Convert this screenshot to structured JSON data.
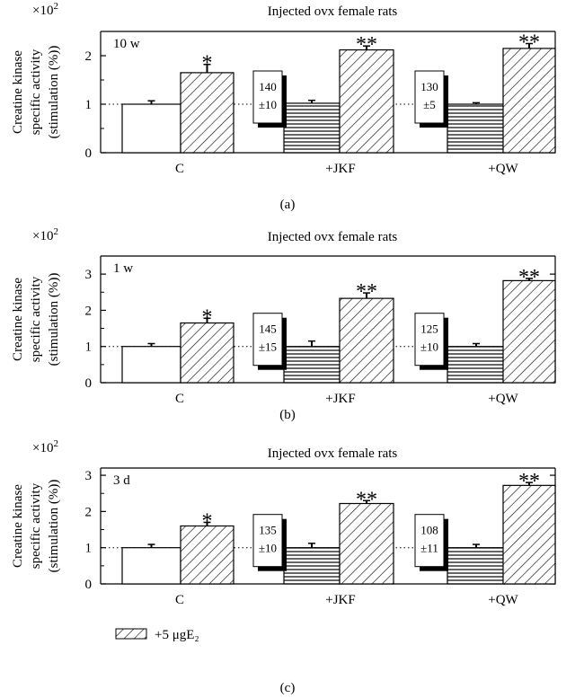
{
  "legend": {
    "label": "+5 μgE₂",
    "pattern": "hatched"
  },
  "panels": [
    {
      "caption": "(a)",
      "title": "Injected ovx female rats",
      "scale": "×10",
      "scale_exp": "2",
      "duration": "10 w",
      "ylabel_lines": [
        "Creatine kinase",
        "specific activity",
        "(stimulation (%))"
      ],
      "baseline_y": 1,
      "groups": [
        {
          "label": "C",
          "inset": null
        },
        {
          "label": "+JKF",
          "inset": {
            "value": "140",
            "err": "±10"
          }
        },
        {
          "label": "+QW",
          "inset": {
            "value": "130",
            "err": "±5"
          }
        }
      ]
    },
    {
      "caption": "(b)",
      "title": "Injected ovx female rats",
      "scale": "×10",
      "scale_exp": "2",
      "duration": "1 w",
      "ylabel_lines": [
        "Creatine kinase",
        "specific activity",
        "(stimulation (%))"
      ],
      "baseline_y": 1,
      "groups": [
        {
          "label": "C",
          "inset": null
        },
        {
          "label": "+JKF",
          "inset": {
            "value": "145",
            "err": "±15"
          }
        },
        {
          "label": "+QW",
          "inset": {
            "value": "125",
            "err": "±10"
          }
        }
      ]
    },
    {
      "caption": "(c)",
      "title": "Injected ovx female rats",
      "scale": "×10",
      "scale_exp": "2",
      "duration": "3 d",
      "ylabel_lines": [
        "Creatine kinase",
        "specific activity",
        "(stimulation (%))"
      ],
      "baseline_y": 1,
      "groups": [
        {
          "label": "C",
          "inset": null
        },
        {
          "label": "+JKF",
          "inset": {
            "value": "135",
            "err": "±10"
          }
        },
        {
          "label": "+QW",
          "inset": {
            "value": "108",
            "err": "±11"
          }
        }
      ]
    }
  ],
  "chart_data": [
    {
      "type": "bar",
      "categories": [
        "C",
        "+JKF",
        "+QW"
      ],
      "series": [
        {
          "values": [
            1.0,
            1.02,
            1.0
          ],
          "errors": [
            0.07,
            0.06,
            0.03
          ],
          "pattern": [
            "open",
            "horizontal-lines",
            "horizontal-lines"
          ]
        },
        {
          "name": "+5 μgE₂",
          "values": [
            1.65,
            2.12,
            2.15
          ],
          "errors": [
            0.17,
            0.08,
            0.1
          ],
          "pattern": "hatched",
          "significance": [
            "*",
            "**",
            "**"
          ]
        }
      ],
      "ylim": [
        0,
        2.5
      ],
      "yticks": [
        0,
        1,
        2
      ],
      "ytick_labels": [
        "0",
        "1",
        "2"
      ],
      "reference_line": 1,
      "grid": false
    },
    {
      "type": "bar",
      "categories": [
        "C",
        "+JKF",
        "+QW"
      ],
      "series": [
        {
          "values": [
            1.0,
            1.0,
            1.0
          ],
          "errors": [
            0.08,
            0.15,
            0.08
          ],
          "pattern": [
            "open",
            "horizontal-lines",
            "horizontal-lines"
          ]
        },
        {
          "name": "+5 μgE₂",
          "values": [
            1.65,
            2.33,
            2.82
          ],
          "errors": [
            0.13,
            0.15,
            0.06
          ],
          "pattern": "hatched",
          "significance": [
            "*",
            "**",
            "**"
          ]
        }
      ],
      "ylim": [
        0,
        3.5
      ],
      "yticks": [
        0,
        1,
        2,
        3
      ],
      "ytick_labels": [
        "0",
        "1",
        "2",
        "3"
      ],
      "reference_line": 1,
      "grid": false
    },
    {
      "type": "bar",
      "categories": [
        "C",
        "+JKF",
        "+QW"
      ],
      "series": [
        {
          "values": [
            1.0,
            1.0,
            1.0
          ],
          "errors": [
            0.09,
            0.12,
            0.09
          ],
          "pattern": [
            "open",
            "horizontal-lines",
            "horizontal-lines"
          ]
        },
        {
          "name": "+5 μgE₂",
          "values": [
            1.6,
            2.22,
            2.72
          ],
          "errors": [
            0.1,
            0.08,
            0.08
          ],
          "pattern": "hatched",
          "significance": [
            "*",
            "**",
            "**"
          ]
        }
      ],
      "ylim": [
        0,
        3.2
      ],
      "yticks": [
        0,
        1,
        2,
        3
      ],
      "ytick_labels": [
        "0",
        "1",
        "2",
        "3"
      ],
      "reference_line": 1,
      "grid": false
    }
  ]
}
